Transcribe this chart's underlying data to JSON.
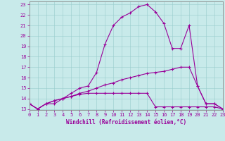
{
  "xlabel": "Windchill (Refroidissement éolien,°C)",
  "bg_color": "#c8eaea",
  "line_color": "#990099",
  "xlim": [
    0,
    23
  ],
  "ylim": [
    12.9,
    23.3
  ],
  "xticks": [
    0,
    1,
    2,
    3,
    4,
    5,
    6,
    7,
    8,
    9,
    10,
    11,
    12,
    13,
    14,
    15,
    16,
    17,
    18,
    19,
    20,
    21,
    22,
    23
  ],
  "yticks": [
    13,
    14,
    15,
    16,
    17,
    18,
    19,
    20,
    21,
    22,
    23
  ],
  "series": [
    [
      13.5,
      13.0,
      13.5,
      13.5,
      14.0,
      14.2,
      14.4,
      14.5,
      14.5,
      14.5,
      14.5,
      14.5,
      14.5,
      14.5,
      14.5,
      13.2,
      13.2,
      13.2,
      13.2,
      13.2,
      13.2,
      13.2,
      13.2,
      13.0
    ],
    [
      13.5,
      13.0,
      13.5,
      13.8,
      14.0,
      14.2,
      14.5,
      14.7,
      15.0,
      15.3,
      15.5,
      15.8,
      16.0,
      16.2,
      16.4,
      16.5,
      16.6,
      16.8,
      17.0,
      17.0,
      15.2,
      13.5,
      13.5,
      13.0
    ],
    [
      13.5,
      13.0,
      13.5,
      13.8,
      14.0,
      14.5,
      15.0,
      15.2,
      16.5,
      19.2,
      21.0,
      21.8,
      22.2,
      22.8,
      23.0,
      22.3,
      21.2,
      18.8,
      18.8,
      21.0,
      15.2,
      13.5,
      13.5,
      13.0
    ]
  ],
  "xlabel_fontsize": 5.5,
  "tick_fontsize": 5.0,
  "grid_color": "#99cccc",
  "spine_color": "#888888"
}
